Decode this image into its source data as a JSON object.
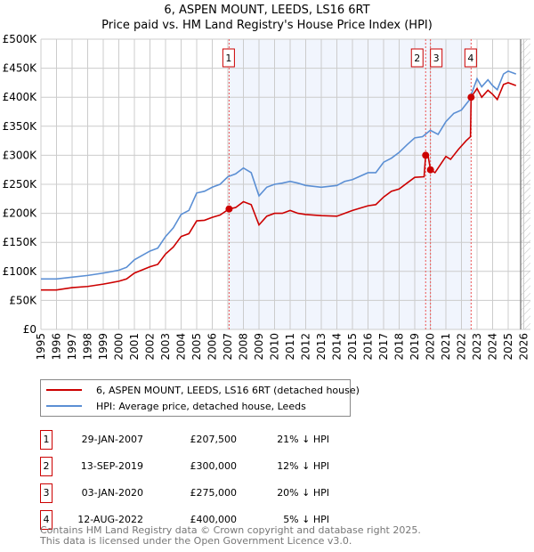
{
  "chart_data": {
    "type": "line",
    "title": "6, ASPEN MOUNT, LEEDS, LS16 6RT",
    "subtitle": "Price paid vs. HM Land Registry's House Price Index (HPI)",
    "xlim": [
      1995,
      2026
    ],
    "ylim": [
      0,
      500000
    ],
    "x_ticks": [
      "1995",
      "1996",
      "1997",
      "1998",
      "1999",
      "2000",
      "2001",
      "2002",
      "2003",
      "2004",
      "2005",
      "2006",
      "2007",
      "2008",
      "2009",
      "2010",
      "2011",
      "2012",
      "2013",
      "2014",
      "2015",
      "2016",
      "2017",
      "2018",
      "2019",
      "2020",
      "2021",
      "2022",
      "2023",
      "2024",
      "2025",
      "2026"
    ],
    "y_ticks": [
      {
        "v": 0,
        "l": "£0"
      },
      {
        "v": 50000,
        "l": "£50K"
      },
      {
        "v": 100000,
        "l": "£100K"
      },
      {
        "v": 150000,
        "l": "£150K"
      },
      {
        "v": 200000,
        "l": "£200K"
      },
      {
        "v": 250000,
        "l": "£250K"
      },
      {
        "v": 300000,
        "l": "£300K"
      },
      {
        "v": 350000,
        "l": "£350K"
      },
      {
        "v": 400000,
        "l": "£400K"
      },
      {
        "v": 450000,
        "l": "£450K"
      },
      {
        "v": 500000,
        "l": "£500K"
      }
    ],
    "grid": true,
    "series": [
      {
        "name": "6, ASPEN MOUNT, LEEDS, LS16 6RT (detached house)",
        "color": "#cc0000",
        "points": [
          [
            1995,
            68000
          ],
          [
            1996,
            68000
          ],
          [
            1997,
            72000
          ],
          [
            1998,
            74000
          ],
          [
            1999,
            78000
          ],
          [
            2000,
            83000
          ],
          [
            2000.5,
            87000
          ],
          [
            2001,
            97000
          ],
          [
            2002,
            108000
          ],
          [
            2002.5,
            112000
          ],
          [
            2003,
            130000
          ],
          [
            2003.5,
            142000
          ],
          [
            2004,
            160000
          ],
          [
            2004.5,
            165000
          ],
          [
            2005,
            187000
          ],
          [
            2005.5,
            188000
          ],
          [
            2006,
            193000
          ],
          [
            2006.5,
            197000
          ],
          [
            2007.08,
            207500
          ],
          [
            2007.5,
            210000
          ],
          [
            2008,
            220000
          ],
          [
            2008.5,
            215000
          ],
          [
            2009,
            180000
          ],
          [
            2009.5,
            195000
          ],
          [
            2010,
            200000
          ],
          [
            2010.5,
            200000
          ],
          [
            2011,
            205000
          ],
          [
            2011.5,
            200000
          ],
          [
            2012,
            198000
          ],
          [
            2013,
            196000
          ],
          [
            2014,
            195000
          ],
          [
            2014.5,
            200000
          ],
          [
            2015,
            205000
          ],
          [
            2016,
            213000
          ],
          [
            2016.5,
            215000
          ],
          [
            2017,
            228000
          ],
          [
            2017.5,
            238000
          ],
          [
            2018,
            242000
          ],
          [
            2018.5,
            252000
          ],
          [
            2019,
            262000
          ],
          [
            2019.6,
            263000
          ],
          [
            2019.7,
            300000
          ],
          [
            2019.85,
            300000
          ],
          [
            2020.01,
            275000
          ],
          [
            2020.3,
            270000
          ],
          [
            2021,
            298000
          ],
          [
            2021.3,
            293000
          ],
          [
            2021.8,
            310000
          ],
          [
            2022.3,
            325000
          ],
          [
            2022.58,
            332000
          ],
          [
            2022.62,
            400000
          ],
          [
            2023,
            415000
          ],
          [
            2023.3,
            400000
          ],
          [
            2023.7,
            412000
          ],
          [
            2024,
            405000
          ],
          [
            2024.3,
            396000
          ],
          [
            2024.7,
            422000
          ],
          [
            2025,
            425000
          ],
          [
            2025.5,
            420000
          ]
        ]
      },
      {
        "name": "HPI: Average price, detached house, Leeds",
        "color": "#5b8fd4",
        "points": [
          [
            1995,
            87000
          ],
          [
            1996,
            87000
          ],
          [
            1997,
            90000
          ],
          [
            1998,
            93000
          ],
          [
            1999,
            97000
          ],
          [
            2000,
            102000
          ],
          [
            2000.5,
            107000
          ],
          [
            2001,
            120000
          ],
          [
            2002,
            135000
          ],
          [
            2002.5,
            140000
          ],
          [
            2003,
            160000
          ],
          [
            2003.5,
            175000
          ],
          [
            2004,
            198000
          ],
          [
            2004.5,
            205000
          ],
          [
            2005,
            235000
          ],
          [
            2005.5,
            238000
          ],
          [
            2006,
            245000
          ],
          [
            2006.5,
            250000
          ],
          [
            2007,
            263000
          ],
          [
            2007.5,
            268000
          ],
          [
            2008,
            278000
          ],
          [
            2008.5,
            270000
          ],
          [
            2009,
            230000
          ],
          [
            2009.5,
            245000
          ],
          [
            2010,
            250000
          ],
          [
            2010.5,
            252000
          ],
          [
            2011,
            255000
          ],
          [
            2011.5,
            252000
          ],
          [
            2012,
            248000
          ],
          [
            2013,
            245000
          ],
          [
            2014,
            248000
          ],
          [
            2014.5,
            255000
          ],
          [
            2015,
            258000
          ],
          [
            2016,
            270000
          ],
          [
            2016.5,
            270000
          ],
          [
            2017,
            288000
          ],
          [
            2017.5,
            295000
          ],
          [
            2018,
            305000
          ],
          [
            2018.5,
            318000
          ],
          [
            2019,
            330000
          ],
          [
            2019.5,
            332000
          ],
          [
            2020,
            343000
          ],
          [
            2020.5,
            336000
          ],
          [
            2021,
            358000
          ],
          [
            2021.5,
            372000
          ],
          [
            2022,
            378000
          ],
          [
            2022.5,
            395000
          ],
          [
            2023,
            432000
          ],
          [
            2023.3,
            418000
          ],
          [
            2023.7,
            430000
          ],
          [
            2024,
            420000
          ],
          [
            2024.3,
            413000
          ],
          [
            2024.7,
            440000
          ],
          [
            2025,
            445000
          ],
          [
            2025.5,
            440000
          ]
        ]
      }
    ],
    "sales": [
      {
        "id": "1",
        "x": 2007.08,
        "y": 207500
      },
      {
        "id": "2",
        "x": 2019.7,
        "y": 300000
      },
      {
        "id": "3",
        "x": 2020.01,
        "y": 275000
      },
      {
        "id": "4",
        "x": 2022.62,
        "y": 400000
      }
    ],
    "shaded_range": [
      2007.08,
      2022.62
    ],
    "forecast_start": 2025.8
  },
  "legend": {
    "property": "6, ASPEN MOUNT, LEEDS, LS16 6RT (detached house)",
    "hpi": "HPI: Average price, detached house, Leeds"
  },
  "transactions": [
    {
      "id": "1",
      "date": "29-JAN-2007",
      "price": "£207,500",
      "hpi": "21% ↓ HPI"
    },
    {
      "id": "2",
      "date": "13-SEP-2019",
      "price": "£300,000",
      "hpi": "12% ↓ HPI"
    },
    {
      "id": "3",
      "date": "03-JAN-2020",
      "price": "£275,000",
      "hpi": "20% ↓ HPI"
    },
    {
      "id": "4",
      "date": "12-AUG-2022",
      "price": "£400,000",
      "hpi": "5% ↓ HPI"
    }
  ],
  "footer": {
    "line1": "Contains HM Land Registry data © Crown copyright and database right 2025.",
    "line2": "This data is licensed under the Open Government Licence v3.0."
  }
}
